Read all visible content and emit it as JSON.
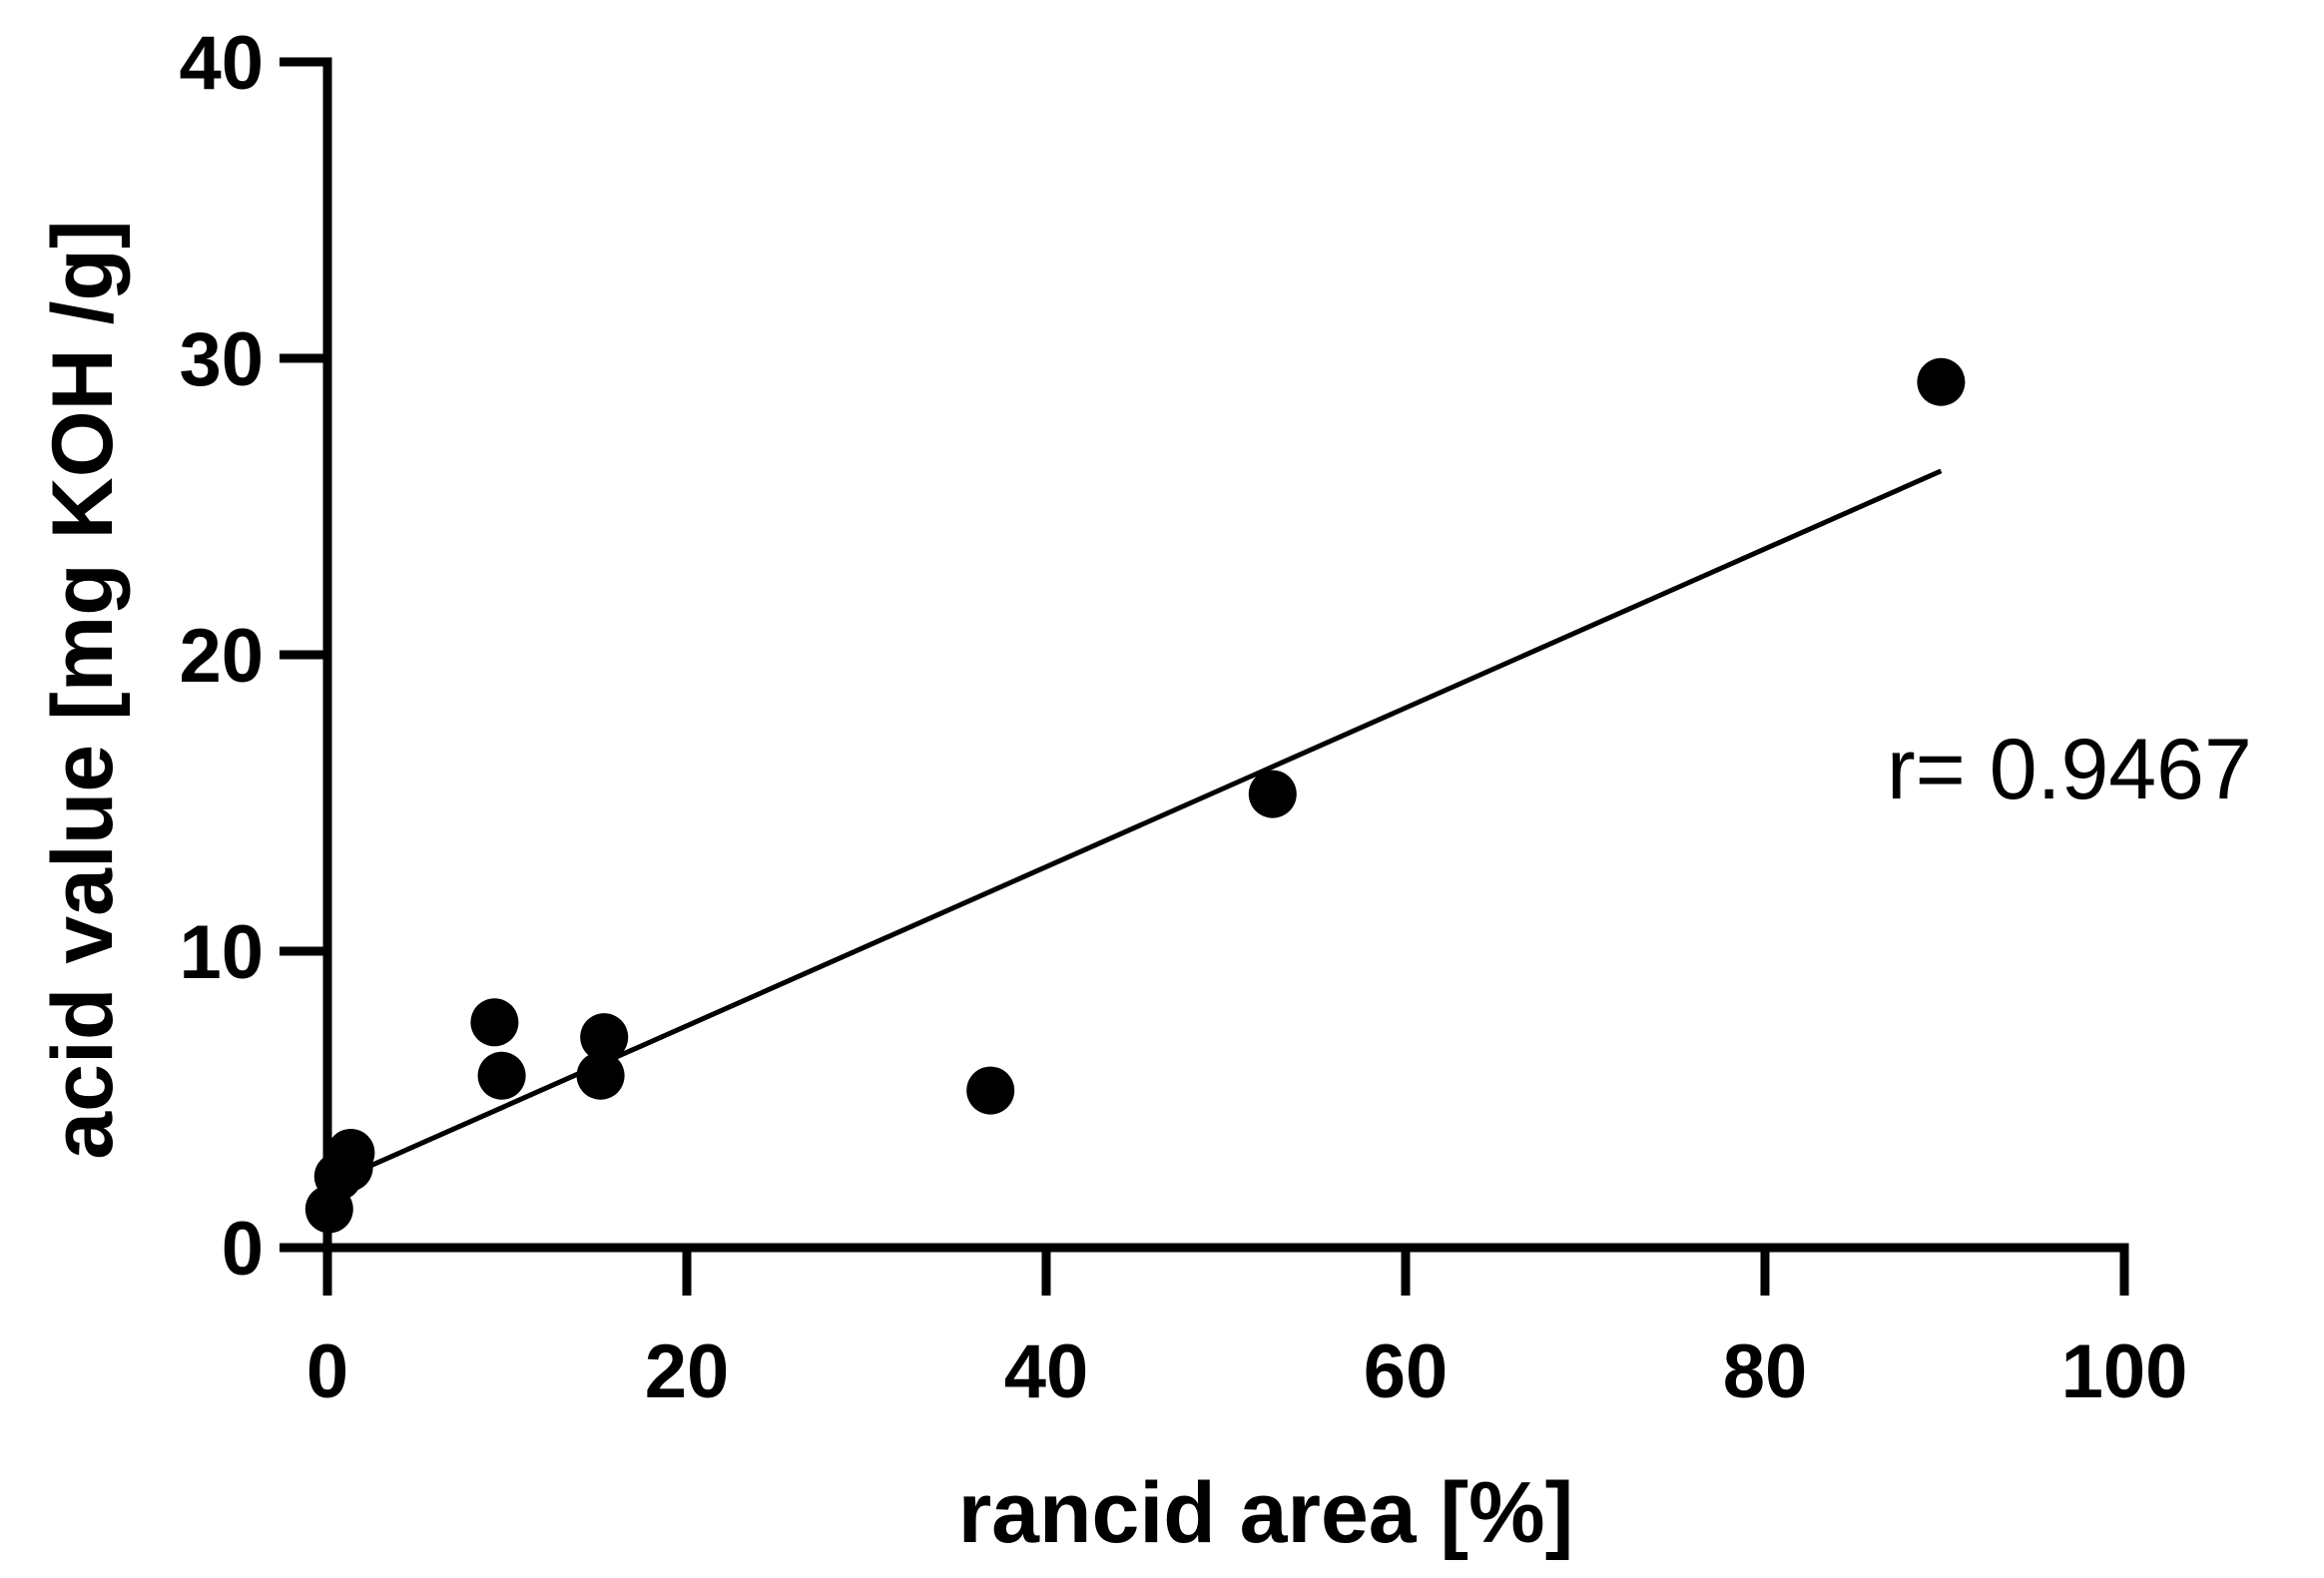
{
  "chart_data": {
    "type": "scatter",
    "xlabel": "rancid area [%]",
    "ylabel": "acid value [mg KOH /g]",
    "xlim": [
      0,
      100
    ],
    "ylim": [
      0,
      40
    ],
    "xticks": [
      0,
      20,
      40,
      60,
      80,
      100
    ],
    "yticks": [
      0,
      10,
      20,
      30,
      40
    ],
    "xtick_labels": [
      "0",
      "20",
      "40",
      "60",
      "80",
      "100"
    ],
    "ytick_labels": [
      "0",
      "10",
      "20",
      "30",
      "40"
    ],
    "grid": false,
    "colors": {
      "points": "#000000",
      "line": "#000000",
      "axes": "#000000"
    },
    "points": [
      {
        "x": 0.1,
        "y": 1.3
      },
      {
        "x": 0.6,
        "y": 2.4
      },
      {
        "x": 1.2,
        "y": 2.7
      },
      {
        "x": 1.3,
        "y": 3.2
      },
      {
        "x": 9.3,
        "y": 7.6
      },
      {
        "x": 9.7,
        "y": 5.8
      },
      {
        "x": 15.2,
        "y": 5.8
      },
      {
        "x": 15.4,
        "y": 7.1
      },
      {
        "x": 36.9,
        "y": 5.3
      },
      {
        "x": 52.6,
        "y": 15.3
      },
      {
        "x": 89.8,
        "y": 29.2
      }
    ],
    "fit_line": {
      "x": [
        0.3,
        89.8
      ],
      "y": [
        2.2,
        26.2
      ]
    },
    "annotation": "r= 0.9467"
  }
}
